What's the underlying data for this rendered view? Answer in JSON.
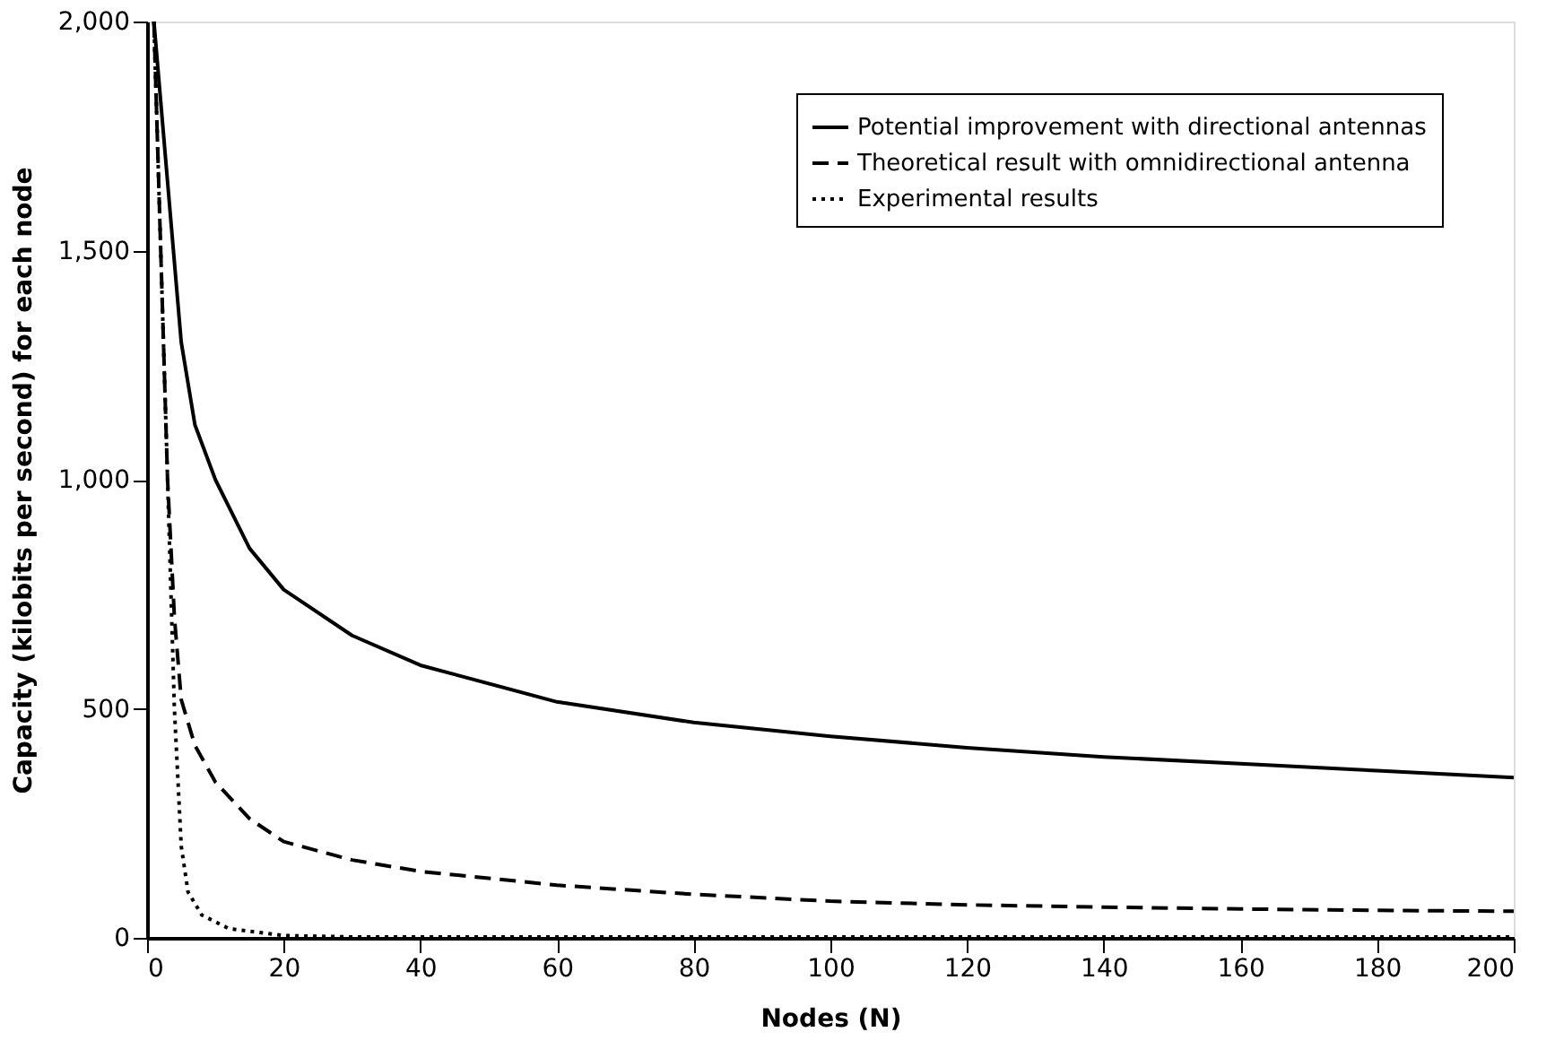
{
  "chart_data": {
    "type": "line",
    "xlabel": "Nodes (N)",
    "ylabel": "Capacity (kilobits per second) for each node",
    "xlim": [
      0,
      200
    ],
    "xticks": [
      0,
      20,
      40,
      60,
      80,
      100,
      120,
      140,
      160,
      180,
      200
    ],
    "ylim": [
      0,
      2000
    ],
    "yticks": [
      0,
      {
        "value": 500,
        "label": "500"
      },
      {
        "value": 1000,
        "label": "1,000"
      },
      {
        "value": 1500,
        "label": "1,500"
      },
      {
        "value": 2000,
        "label": "2,000"
      }
    ],
    "grid": false,
    "legend": "top right",
    "marker": "none",
    "series": [
      {
        "name": "Potential improvement with directional antennas",
        "color": "#000000",
        "line_style": "solid",
        "x": [
          1,
          3,
          5,
          7,
          10,
          15,
          20,
          30,
          40,
          60,
          80,
          100,
          120,
          140,
          160,
          180,
          200
        ],
        "values": [
          2000,
          1650,
          1300,
          1120,
          1000,
          850,
          760,
          660,
          595,
          515,
          470,
          440,
          415,
          395,
          380,
          365,
          350
        ]
      },
      {
        "name": "Theoretical result with omnidirectional antenna",
        "color": "#000000",
        "line_style": "dashed",
        "x": [
          1,
          2,
          3,
          4,
          5,
          7,
          10,
          15,
          20,
          30,
          40,
          60,
          80,
          100,
          120,
          140,
          160,
          180,
          200
        ],
        "values": [
          2000,
          1500,
          1000,
          700,
          520,
          420,
          340,
          260,
          210,
          170,
          145,
          115,
          95,
          80,
          72,
          67,
          63,
          60,
          58
        ]
      },
      {
        "name": "Experimental results",
        "color": "#000000",
        "line_style": "dotted",
        "x": [
          1,
          2,
          3,
          4,
          5,
          6,
          8,
          12,
          20,
          30,
          200
        ],
        "values": [
          2000,
          1500,
          1000,
          500,
          200,
          100,
          50,
          20,
          5,
          2,
          2
        ]
      }
    ]
  }
}
